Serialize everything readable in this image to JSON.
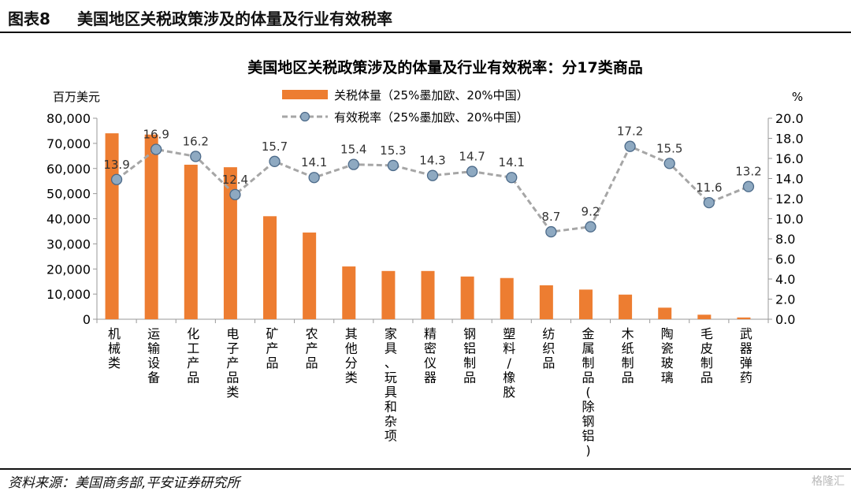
{
  "header": {
    "figure_label": "图表8",
    "figure_title": "美国地区关税政策涉及的体量及行业有效税率"
  },
  "footer": {
    "source": "资料来源：美国商务部,平安证券研究所"
  },
  "watermark": "格隆汇",
  "chart_data": {
    "type": "bar",
    "title": "美国地区关税政策涉及的体量及行业有效税率：分17类商品",
    "left_axis_unit": "百万美元",
    "right_axis_unit": "%",
    "ylim_left": [
      0,
      80000
    ],
    "ylim_right": [
      0,
      20
    ],
    "left_ticks": [
      "0",
      "10,000",
      "20,000",
      "30,000",
      "40,000",
      "50,000",
      "60,000",
      "70,000",
      "80,000"
    ],
    "right_ticks": [
      "0.0",
      "2.0",
      "4.0",
      "6.0",
      "8.0",
      "10.0",
      "12.0",
      "14.0",
      "16.0",
      "18.0",
      "20.0"
    ],
    "legend": {
      "position": "top",
      "bar_label": "关税体量（25%墨加欧、20%中国）",
      "line_label": "有效税率（25%墨加欧、20%中国）"
    },
    "categories": [
      "机械类",
      "运输设备",
      "化工产品",
      "电子产品类",
      "矿产品",
      "农产品",
      "其他分类",
      "家具、玩具和杂项",
      "精密仪器",
      "钢铝制品",
      "塑料/橡胶",
      "纺织品",
      "金属制品(除钢铝)",
      "木纸制品",
      "陶瓷玻璃",
      "毛皮制品",
      "武器弹药"
    ],
    "series": [
      {
        "name": "关税体量（25%墨加欧、20%中国）",
        "type": "bar",
        "axis": "left",
        "color": "#ED7D31",
        "values": [
          74000,
          73500,
          61500,
          60500,
          41000,
          34500,
          21000,
          19200,
          19200,
          17000,
          16400,
          13500,
          11800,
          9800,
          4600,
          1800,
          700
        ]
      },
      {
        "name": "有效税率（25%墨加欧、20%中国）",
        "type": "line",
        "axis": "right",
        "color": "#A6A6A6",
        "marker_color": "#8EA9C1",
        "values": [
          13.9,
          16.9,
          16.2,
          12.4,
          15.7,
          14.1,
          15.4,
          15.3,
          14.3,
          14.7,
          14.1,
          8.7,
          9.2,
          17.2,
          15.5,
          11.6,
          13.2
        ],
        "labels": [
          "13.9",
          "16.9",
          "16.2",
          "12.4",
          "15.7",
          "14.1",
          "15.4",
          "15.3",
          "14.3",
          "14.7",
          "14.1",
          "8.7",
          "9.2",
          "17.2",
          "15.5",
          "11.6",
          "13.2"
        ]
      }
    ]
  }
}
